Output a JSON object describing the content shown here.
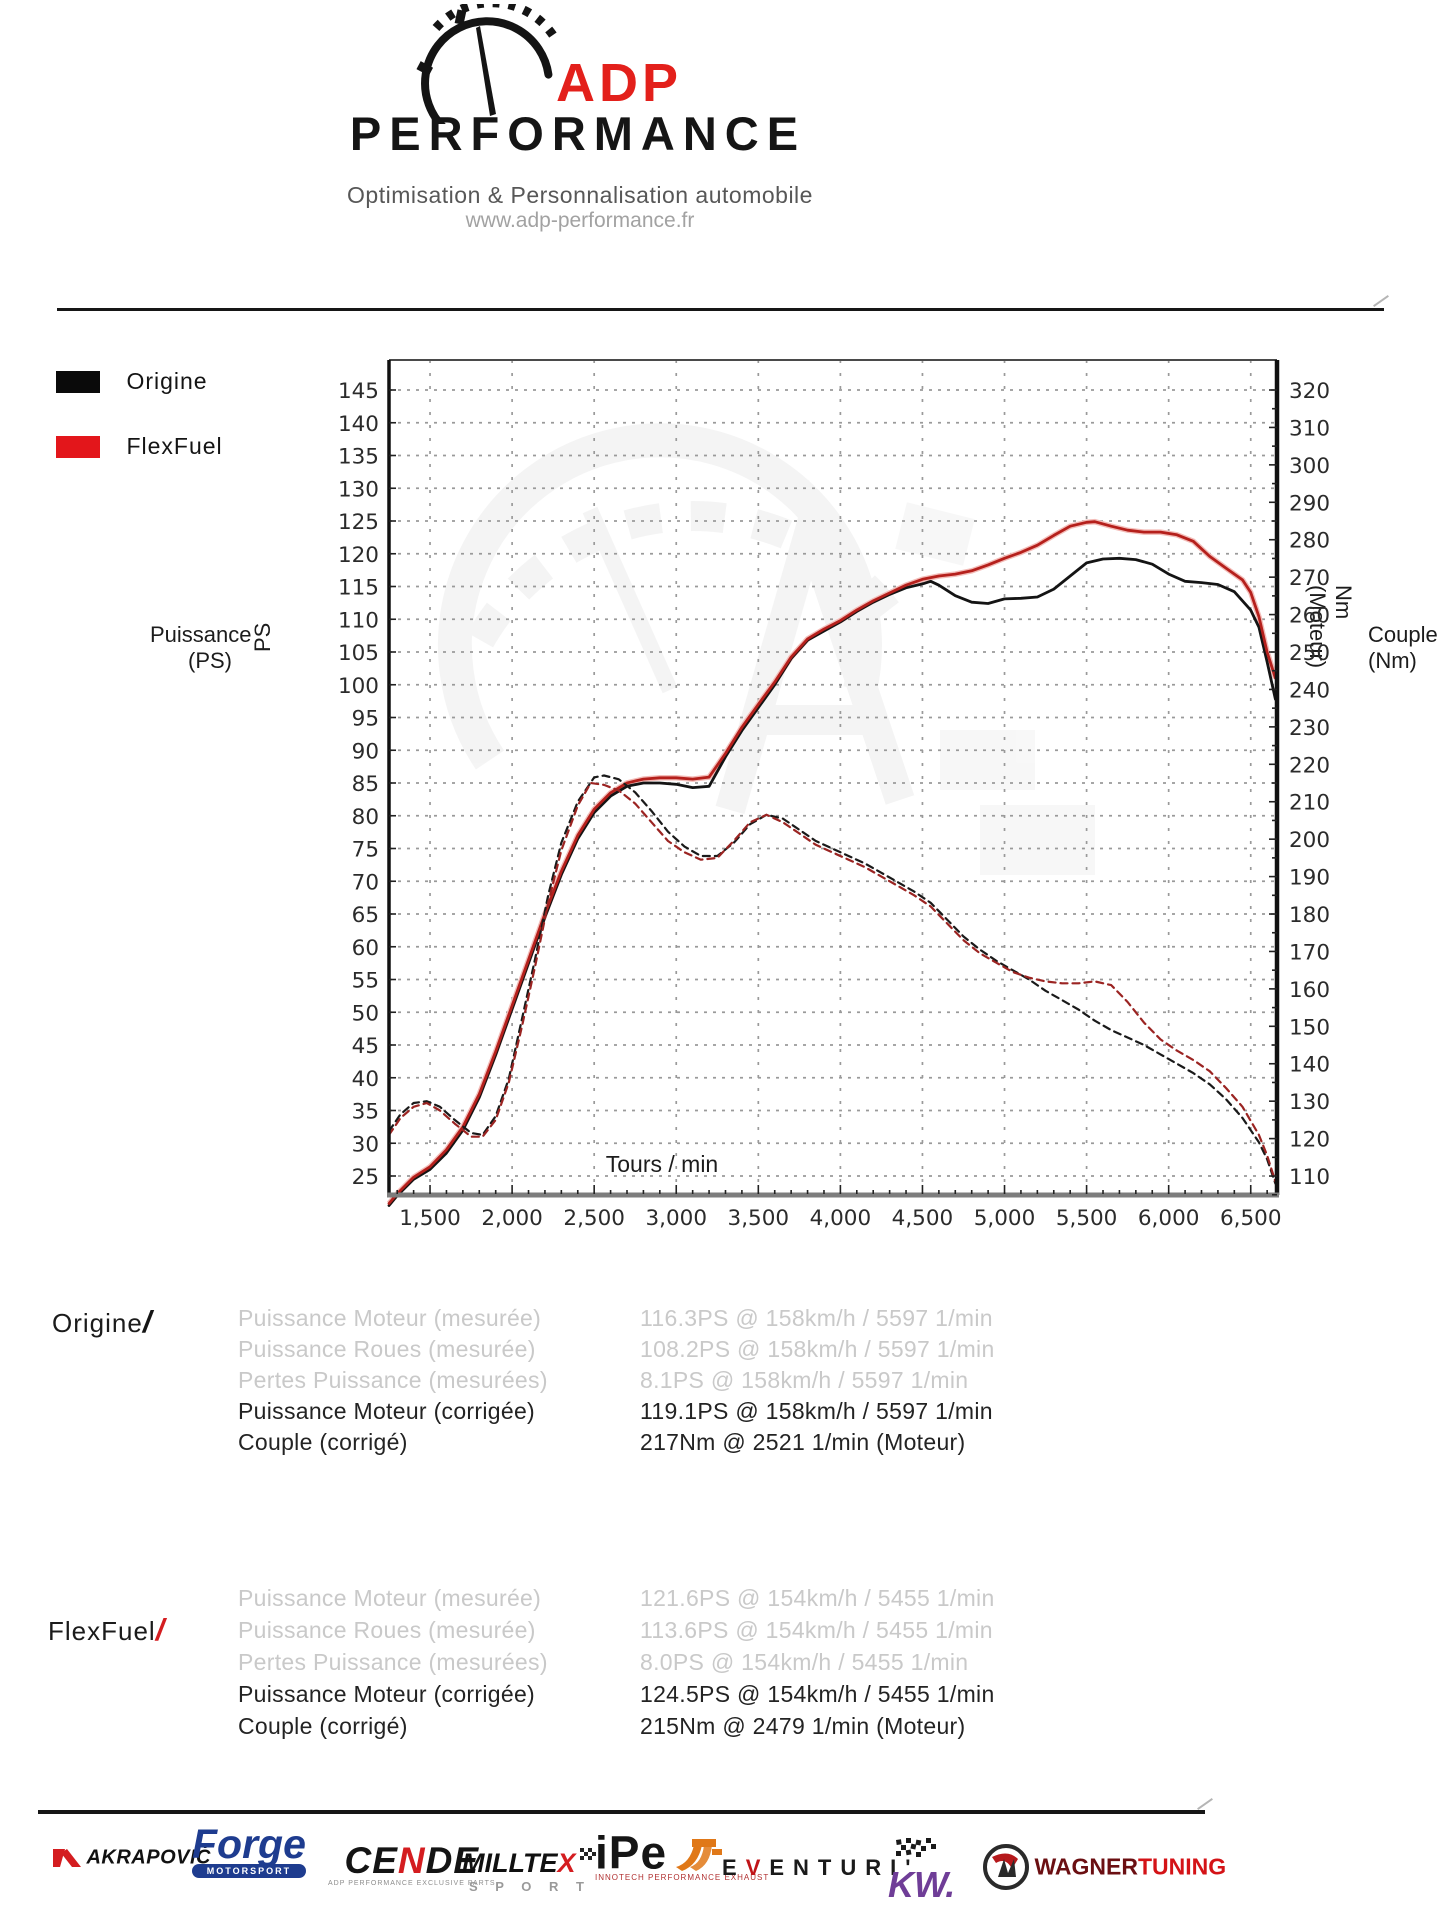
{
  "header": {
    "brand_top": "ADP",
    "brand_bottom": "PERFORMANCE",
    "tagline": "Optimisation & Personnalisation automobile",
    "url": "www.adp-performance.fr"
  },
  "colors": {
    "accent_red": "#e3201b",
    "legend_red": "#e3161b",
    "curve_black": "#141414",
    "curve_red": "#b5201c",
    "curve_red_halo": "#f3bcb8",
    "grid": "#9a9a9a",
    "gray_text": "#c9c9c9"
  },
  "legend": [
    {
      "label": "Origine",
      "color": "#0a0a0a"
    },
    {
      "label": "FlexFuel",
      "color": "#e3161b"
    }
  ],
  "chart_data": {
    "type": "line",
    "xlabel": "Tours / min",
    "ylabel_left_title": "Puissance",
    "ylabel_left_unit": "(PS)",
    "ylabel_left_axis": "PS",
    "ylabel_right_axis": "Nm (Moteur)",
    "ylabel_right_title": "Couple",
    "ylabel_right_unit": "(Nm)",
    "x_ticks": [
      1500,
      2000,
      2500,
      3000,
      3500,
      4000,
      4500,
      5000,
      5500,
      6000,
      6500
    ],
    "x_tick_labels": [
      "1,500",
      "2,000",
      "2,500",
      "3,000",
      "3,500",
      "4,000",
      "4,500",
      "5,000",
      "5,500",
      "6,000",
      "6,500"
    ],
    "xlim": [
      1250,
      6660
    ],
    "y_left_ticks": [
      145,
      140,
      135,
      130,
      125,
      120,
      115,
      110,
      105,
      100,
      95,
      90,
      85,
      80,
      75,
      70,
      65,
      60,
      55,
      50,
      45,
      40,
      35,
      30,
      25
    ],
    "y_right_ticks": [
      320,
      310,
      300,
      290,
      280,
      270,
      260,
      250,
      240,
      230,
      220,
      210,
      200,
      190,
      180,
      170,
      160,
      150,
      140,
      130,
      120,
      110
    ],
    "grid": true,
    "legend_position": "top-left",
    "series": [
      {
        "name": "Puissance Origine (PS)",
        "axis": "left",
        "style": "solid",
        "color": "#141414",
        "points": [
          [
            1250,
            20.5
          ],
          [
            1300,
            22
          ],
          [
            1400,
            24.5
          ],
          [
            1500,
            26
          ],
          [
            1600,
            28.5
          ],
          [
            1700,
            32
          ],
          [
            1800,
            37
          ],
          [
            1900,
            43.5
          ],
          [
            2000,
            50.5
          ],
          [
            2100,
            57.5
          ],
          [
            2200,
            64.5
          ],
          [
            2300,
            71
          ],
          [
            2400,
            76.5
          ],
          [
            2500,
            80.5
          ],
          [
            2600,
            83
          ],
          [
            2700,
            84.5
          ],
          [
            2800,
            85
          ],
          [
            2900,
            85
          ],
          [
            3000,
            84.8
          ],
          [
            3100,
            84.3
          ],
          [
            3200,
            84.5
          ],
          [
            3300,
            89
          ],
          [
            3400,
            93
          ],
          [
            3500,
            96.5
          ],
          [
            3600,
            100
          ],
          [
            3700,
            104
          ],
          [
            3800,
            106.8
          ],
          [
            3900,
            108.2
          ],
          [
            4000,
            109.6
          ],
          [
            4100,
            111.2
          ],
          [
            4200,
            112.6
          ],
          [
            4300,
            113.8
          ],
          [
            4400,
            114.8
          ],
          [
            4500,
            115.4
          ],
          [
            4550,
            115.8
          ],
          [
            4600,
            115.2
          ],
          [
            4700,
            113.6
          ],
          [
            4800,
            112.6
          ],
          [
            4900,
            112.4
          ],
          [
            5000,
            113.1
          ],
          [
            5100,
            113.2
          ],
          [
            5200,
            113.4
          ],
          [
            5300,
            114.6
          ],
          [
            5400,
            116.6
          ],
          [
            5500,
            118.6
          ],
          [
            5600,
            119.2
          ],
          [
            5700,
            119.3
          ],
          [
            5800,
            119.1
          ],
          [
            5900,
            118.4
          ],
          [
            6000,
            116.9
          ],
          [
            6100,
            115.8
          ],
          [
            6200,
            115.6
          ],
          [
            6300,
            115.3
          ],
          [
            6400,
            114.2
          ],
          [
            6500,
            111.4
          ],
          [
            6550,
            108.8
          ],
          [
            6600,
            103.5
          ],
          [
            6650,
            97.8
          ]
        ]
      },
      {
        "name": "Puissance FlexFuel (PS)",
        "axis": "left",
        "style": "solid",
        "color": "#b5201c",
        "points": [
          [
            1250,
            20.8
          ],
          [
            1300,
            22.3
          ],
          [
            1400,
            24.8
          ],
          [
            1500,
            26.4
          ],
          [
            1600,
            29
          ],
          [
            1700,
            32.5
          ],
          [
            1800,
            37.5
          ],
          [
            1900,
            44
          ],
          [
            2000,
            51
          ],
          [
            2100,
            58
          ],
          [
            2200,
            65
          ],
          [
            2300,
            71.5
          ],
          [
            2400,
            77
          ],
          [
            2500,
            81
          ],
          [
            2600,
            83.5
          ],
          [
            2700,
            85
          ],
          [
            2800,
            85.6
          ],
          [
            2900,
            85.8
          ],
          [
            3000,
            85.8
          ],
          [
            3100,
            85.6
          ],
          [
            3200,
            85.9
          ],
          [
            3300,
            89.5
          ],
          [
            3400,
            93.5
          ],
          [
            3500,
            97
          ],
          [
            3600,
            100.4
          ],
          [
            3700,
            104.2
          ],
          [
            3800,
            107
          ],
          [
            3900,
            108.5
          ],
          [
            4000,
            109.8
          ],
          [
            4100,
            111.4
          ],
          [
            4200,
            112.8
          ],
          [
            4300,
            114
          ],
          [
            4400,
            115.2
          ],
          [
            4500,
            116.1
          ],
          [
            4600,
            116.6
          ],
          [
            4700,
            116.9
          ],
          [
            4800,
            117.4
          ],
          [
            4900,
            118.3
          ],
          [
            5000,
            119.3
          ],
          [
            5100,
            120.2
          ],
          [
            5200,
            121.3
          ],
          [
            5300,
            122.8
          ],
          [
            5400,
            124.2
          ],
          [
            5500,
            124.8
          ],
          [
            5550,
            124.9
          ],
          [
            5650,
            124.2
          ],
          [
            5750,
            123.6
          ],
          [
            5850,
            123.3
          ],
          [
            5950,
            123.3
          ],
          [
            6050,
            122.9
          ],
          [
            6150,
            121.9
          ],
          [
            6250,
            119.6
          ],
          [
            6350,
            117.8
          ],
          [
            6450,
            116
          ],
          [
            6500,
            114.1
          ],
          [
            6550,
            110.4
          ],
          [
            6600,
            105
          ],
          [
            6650,
            101
          ]
        ]
      },
      {
        "name": "Couple Origine (Nm)",
        "axis": "right",
        "style": "dashed",
        "color": "#1a1a1a",
        "points": [
          [
            1250,
            122
          ],
          [
            1320,
            126.5
          ],
          [
            1400,
            129.5
          ],
          [
            1480,
            130
          ],
          [
            1560,
            128.5
          ],
          [
            1650,
            125
          ],
          [
            1750,
            121.5
          ],
          [
            1820,
            121
          ],
          [
            1900,
            126
          ],
          [
            1980,
            136
          ],
          [
            2060,
            152
          ],
          [
            2140,
            168
          ],
          [
            2220,
            185
          ],
          [
            2300,
            199
          ],
          [
            2400,
            210
          ],
          [
            2500,
            216.5
          ],
          [
            2560,
            217
          ],
          [
            2650,
            216
          ],
          [
            2750,
            212.5
          ],
          [
            2850,
            207.5
          ],
          [
            2950,
            202
          ],
          [
            3050,
            198
          ],
          [
            3150,
            195.5
          ],
          [
            3250,
            195.5
          ],
          [
            3350,
            199
          ],
          [
            3450,
            204
          ],
          [
            3550,
            206.5
          ],
          [
            3650,
            205.5
          ],
          [
            3750,
            202.5
          ],
          [
            3850,
            199.5
          ],
          [
            3950,
            197.5
          ],
          [
            4050,
            195.5
          ],
          [
            4150,
            193.5
          ],
          [
            4250,
            191
          ],
          [
            4350,
            188.5
          ],
          [
            4450,
            186
          ],
          [
            4550,
            183
          ],
          [
            4650,
            178.5
          ],
          [
            4750,
            174
          ],
          [
            4850,
            170.5
          ],
          [
            4950,
            167.5
          ],
          [
            5050,
            165
          ],
          [
            5150,
            162.5
          ],
          [
            5250,
            159.5
          ],
          [
            5350,
            157
          ],
          [
            5450,
            154.5
          ],
          [
            5550,
            151.5
          ],
          [
            5650,
            149
          ],
          [
            5750,
            147
          ],
          [
            5850,
            145
          ],
          [
            5950,
            142.5
          ],
          [
            6050,
            140
          ],
          [
            6150,
            137.5
          ],
          [
            6250,
            134.5
          ],
          [
            6350,
            130.5
          ],
          [
            6450,
            125.5
          ],
          [
            6550,
            119
          ],
          [
            6600,
            114.5
          ],
          [
            6650,
            108
          ]
        ]
      },
      {
        "name": "Couple FlexFuel (Nm)",
        "axis": "right",
        "style": "dashed",
        "color": "#9b2422",
        "points": [
          [
            1250,
            121
          ],
          [
            1320,
            125.5
          ],
          [
            1400,
            128.5
          ],
          [
            1480,
            129.5
          ],
          [
            1560,
            127.5
          ],
          [
            1650,
            124
          ],
          [
            1750,
            120.5
          ],
          [
            1820,
            120.5
          ],
          [
            1900,
            125
          ],
          [
            1980,
            135
          ],
          [
            2060,
            150
          ],
          [
            2140,
            166
          ],
          [
            2220,
            183
          ],
          [
            2300,
            197
          ],
          [
            2400,
            209
          ],
          [
            2479,
            215
          ],
          [
            2560,
            214.5
          ],
          [
            2650,
            213
          ],
          [
            2750,
            209.5
          ],
          [
            2850,
            204.5
          ],
          [
            2950,
            199.5
          ],
          [
            3050,
            196.5
          ],
          [
            3150,
            194.5
          ],
          [
            3250,
            195
          ],
          [
            3350,
            199.5
          ],
          [
            3450,
            204.5
          ],
          [
            3550,
            206.5
          ],
          [
            3650,
            204.5
          ],
          [
            3750,
            201.5
          ],
          [
            3850,
            198.5
          ],
          [
            3950,
            196.5
          ],
          [
            4050,
            194.5
          ],
          [
            4150,
            192.5
          ],
          [
            4250,
            190
          ],
          [
            4350,
            187.5
          ],
          [
            4450,
            185
          ],
          [
            4550,
            182
          ],
          [
            4650,
            177.5
          ],
          [
            4750,
            173
          ],
          [
            4850,
            169.5
          ],
          [
            4950,
            167
          ],
          [
            5050,
            164.5
          ],
          [
            5150,
            163
          ],
          [
            5250,
            162
          ],
          [
            5350,
            161.5
          ],
          [
            5450,
            161.5
          ],
          [
            5550,
            162
          ],
          [
            5650,
            161
          ],
          [
            5750,
            156.5
          ],
          [
            5850,
            151
          ],
          [
            5950,
            146.5
          ],
          [
            6050,
            143.5
          ],
          [
            6150,
            141
          ],
          [
            6250,
            138
          ],
          [
            6350,
            133.5
          ],
          [
            6450,
            128.5
          ],
          [
            6550,
            121
          ],
          [
            6600,
            115.5
          ],
          [
            6650,
            108.5
          ]
        ]
      }
    ]
  },
  "results": {
    "origine": {
      "title": "Origine",
      "slash": "/",
      "slash_color": "#141414",
      "rows": [
        {
          "label": "Puissance Moteur (mesurée)",
          "value": "116.3PS @ 158km/h / 5597 1/min",
          "emphasis": "gray"
        },
        {
          "label": "Puissance Roues (mesurée)",
          "value": "108.2PS @ 158km/h / 5597 1/min",
          "emphasis": "gray"
        },
        {
          "label": "Pertes Puissance (mesurées)",
          "value": "8.1PS @ 158km/h / 5597 1/min",
          "emphasis": "gray"
        },
        {
          "label": "Puissance Moteur (corrigée)",
          "value": "119.1PS @ 158km/h / 5597 1/min",
          "emphasis": "dark"
        },
        {
          "label": "Couple (corrigé)",
          "value": "217Nm @ 2521 1/min (Moteur)",
          "emphasis": "dark"
        }
      ]
    },
    "flexfuel": {
      "title": "FlexFuel",
      "slash": "/",
      "slash_color": "#d41d20",
      "rows": [
        {
          "label": "Puissance Moteur (mesurée)",
          "value": "121.6PS @ 154km/h / 5455 1/min",
          "emphasis": "gray"
        },
        {
          "label": "Puissance Roues (mesurée)",
          "value": "113.6PS @ 154km/h / 5455 1/min",
          "emphasis": "gray"
        },
        {
          "label": "Pertes Puissance (mesurées)",
          "value": "8.0PS @ 154km/h / 5455 1/min",
          "emphasis": "gray"
        },
        {
          "label": "Puissance Moteur (corrigée)",
          "value": "124.5PS @ 154km/h / 5455 1/min",
          "emphasis": "dark"
        },
        {
          "label": "Couple (corrigé)",
          "value": "215Nm @ 2479 1/min (Moteur)",
          "emphasis": "dark"
        }
      ]
    }
  },
  "footer": {
    "logos": {
      "akrapovic": "AKRAPOVIČ",
      "forge": "Forge",
      "forge_sub": "MOTORSPORT",
      "cende": "CE",
      "cende_n": "N",
      "cende_end": "DE",
      "cende_sub": "ADP PERFORMANCE EXCLUSIVE PARTS",
      "milltek": "MILLTE",
      "milltek_x": "X",
      "milltek_sub": "S P O R T",
      "ipe": "iPe",
      "ipe_sub": "INNOTECH PERFORMANCE EXHAUST",
      "eventuri_pre": "E",
      "eventuri_v": "V",
      "eventuri_post": "ENTURI'",
      "kw": "KW.",
      "wagner": "WAGNER",
      "tuning": "TUNING"
    }
  }
}
